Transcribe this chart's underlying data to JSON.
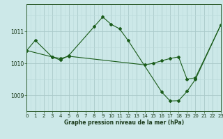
{
  "title": "Graphe pression niveau de la mer (hPa)",
  "bg_color": "#cce8e8",
  "line_color": "#1a5c1a",
  "grid_major_color": "#aacaca",
  "grid_minor_color": "#bbdada",
  "xlim": [
    0,
    23
  ],
  "ylim": [
    1008.5,
    1011.85
  ],
  "yticks": [
    1009,
    1010,
    1011
  ],
  "xticks": [
    0,
    1,
    2,
    3,
    4,
    5,
    6,
    7,
    8,
    9,
    10,
    11,
    12,
    13,
    14,
    15,
    16,
    17,
    18,
    19,
    20,
    21,
    22,
    23
  ],
  "series1_x": [
    0,
    1,
    3,
    4,
    5,
    8,
    9,
    10,
    11,
    12,
    16,
    17,
    18,
    19,
    20,
    23
  ],
  "series1_y": [
    1010.4,
    1010.72,
    1010.2,
    1010.1,
    1010.25,
    1011.15,
    1011.45,
    1011.22,
    1011.08,
    1010.72,
    1009.1,
    1008.82,
    1008.83,
    1009.12,
    1009.5,
    1011.2
  ],
  "series2_x": [
    0,
    3,
    4,
    5,
    14,
    15,
    16,
    17,
    18,
    19,
    20,
    23
  ],
  "series2_y": [
    1010.4,
    1010.2,
    1010.15,
    1010.22,
    1009.95,
    1010.0,
    1010.08,
    1010.15,
    1010.2,
    1009.5,
    1009.55,
    1011.2
  ]
}
